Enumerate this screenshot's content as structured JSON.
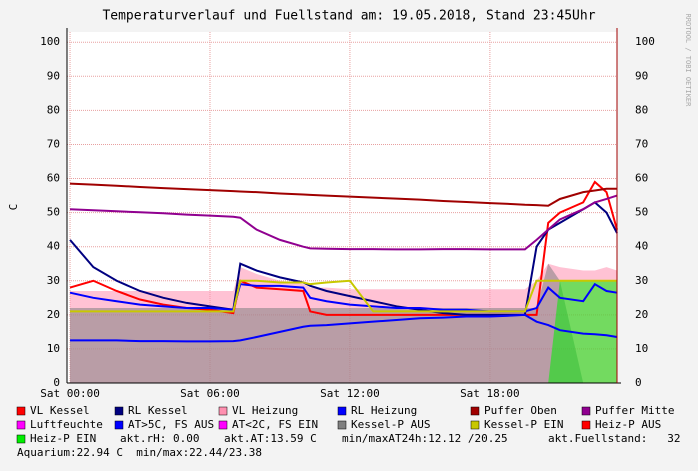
{
  "chart_data": {
    "type": "line",
    "title": "Temperaturverlauf und Fuellstand am: 19.05.2018, Stand 23:45Uhr",
    "watermark": "RRDTOOL / TOBI OETIKER",
    "y_label": "C",
    "x": [
      0,
      1,
      2,
      3,
      4,
      5,
      6,
      7,
      7.3,
      8,
      9,
      10,
      10.3,
      11,
      12,
      13,
      14,
      15,
      16,
      17,
      18,
      19,
      19.5,
      20,
      20.5,
      21,
      22,
      22.5,
      23,
      23.45
    ],
    "xlim": [
      -0.13,
      23.45
    ],
    "xticks": [
      {
        "value": 0,
        "label": "Sat 00:00"
      },
      {
        "value": 6,
        "label": "Sat 06:00"
      },
      {
        "value": 12,
        "label": "Sat 12:00"
      },
      {
        "value": 18,
        "label": "Sat 18:00"
      }
    ],
    "ylim": [
      0,
      103
    ],
    "yticks": [
      0,
      10,
      20,
      30,
      40,
      50,
      60,
      70,
      80,
      90,
      100
    ],
    "grid": true,
    "series": [
      {
        "name": "VL Kessel",
        "color": "#ff0000",
        "values": [
          28,
          30,
          27,
          24.5,
          23,
          22,
          21.5,
          20.5,
          30,
          28,
          27.5,
          27,
          21,
          20,
          20,
          20,
          20,
          20,
          20,
          20,
          20,
          20,
          20,
          20,
          47,
          50,
          53,
          59,
          56,
          45
        ]
      },
      {
        "name": "RL Kessel",
        "color": "#000080",
        "values": [
          42,
          34,
          30,
          27,
          25,
          23.5,
          22.5,
          21.5,
          35,
          33,
          31,
          29.5,
          28.5,
          27,
          25.5,
          24,
          22.5,
          21.5,
          20.5,
          20,
          20,
          20,
          20,
          40,
          45,
          47,
          51,
          53,
          50,
          44
        ]
      },
      {
        "name": "VL Heizung",
        "color": "#ff90b0",
        "fill": true,
        "values": [
          27,
          27,
          27,
          27,
          27,
          27,
          27,
          27,
          34,
          32,
          30,
          29,
          28,
          28,
          27.5,
          27.5,
          27.5,
          27.5,
          27.5,
          27.5,
          27.5,
          27.5,
          27.5,
          30,
          35,
          34,
          33,
          33,
          34,
          33
        ]
      },
      {
        "name": "RL Heizung",
        "color": "#0000ff",
        "values": [
          26.5,
          25,
          24,
          23,
          22.5,
          22,
          22,
          21.5,
          29,
          28.5,
          28.5,
          28,
          25,
          24,
          23,
          22.5,
          22,
          22,
          21.5,
          21.5,
          21,
          21,
          21,
          22,
          28,
          25,
          24,
          29,
          27,
          26.5
        ]
      },
      {
        "name": "Puffer Oben",
        "color": "#a00000",
        "values": [
          58.5,
          58.2,
          57.9,
          57.5,
          57.2,
          56.9,
          56.6,
          56.3,
          56.2,
          56.0,
          55.6,
          55.3,
          55.2,
          55.0,
          54.7,
          54.4,
          54.1,
          53.8,
          53.4,
          53.1,
          52.8,
          52.5,
          52.3,
          52.2,
          52.0,
          54,
          56,
          56.5,
          57,
          57
        ]
      },
      {
        "name": "Puffer Mitte",
        "color": "#900090",
        "values": [
          51,
          50.7,
          50.4,
          50.1,
          49.8,
          49.4,
          49.1,
          48.8,
          48.5,
          45,
          42,
          40,
          39.5,
          39.4,
          39.3,
          39.3,
          39.2,
          39.2,
          39.3,
          39.3,
          39.2,
          39.2,
          39.2,
          42,
          45,
          48,
          51,
          53,
          54,
          55
        ]
      },
      {
        "name": "Luftfeuchte",
        "color": "#ff00ff"
      },
      {
        "name": "AT>5C, FS AUS",
        "color": "#0000ff",
        "values": [
          12.5,
          12.5,
          12.5,
          12.3,
          12.3,
          12.2,
          12.2,
          12.3,
          12.5,
          13.5,
          15,
          16.5,
          16.8,
          17,
          17.5,
          18,
          18.5,
          19,
          19.2,
          19.5,
          19.5,
          19.8,
          20,
          18,
          17,
          15.5,
          14.5,
          14.3,
          14,
          13.5
        ]
      },
      {
        "name": "AT<2C, FS EIN",
        "color": "#ff00ff"
      },
      {
        "name": "Kessel-P AUS",
        "color": "#808080",
        "fill": true,
        "values": [
          22,
          22,
          22,
          22,
          22,
          22,
          22,
          22,
          22,
          22,
          22,
          22,
          22,
          22,
          22,
          22,
          22,
          22,
          22,
          22,
          22,
          22,
          22,
          22,
          35,
          30,
          0,
          0,
          0,
          0
        ]
      },
      {
        "name": "Kessel-P EIN",
        "color": "#c8c800",
        "values": [
          21,
          21,
          21,
          21,
          21,
          21,
          21,
          21,
          30,
          30,
          29.5,
          29.5,
          29,
          29.5,
          30,
          21,
          21,
          21,
          21,
          21,
          21,
          21,
          21,
          30,
          30,
          30,
          30,
          30,
          30,
          30
        ]
      },
      {
        "name": "Heiz-P AUS",
        "color": "#ff0000"
      },
      {
        "name": "Heiz-P EIN",
        "color": "#00ee00",
        "fill": true,
        "values": [
          0,
          0,
          0,
          0,
          0,
          0,
          0,
          0,
          0,
          0,
          0,
          0,
          0,
          0,
          0,
          0,
          0,
          0,
          0,
          0,
          0,
          0,
          0,
          0,
          0,
          30,
          30,
          30,
          30,
          30
        ]
      }
    ],
    "info": [
      "akt.rH: 0.00",
      "akt.AT:13.59 C",
      "min/maxAT24h:12.12 /20.25",
      "akt.Fuellstand:   32"
    ],
    "footer": "Aquarium:22.94 C  min/max:22.44/23.38"
  }
}
